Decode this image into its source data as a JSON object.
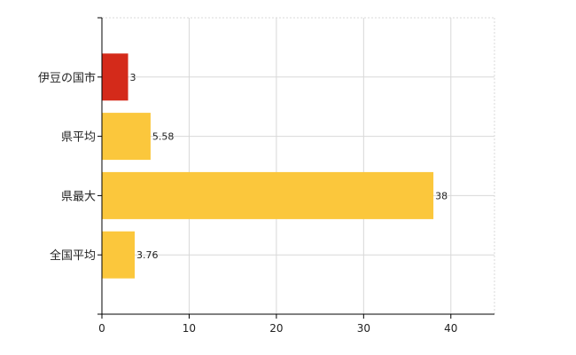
{
  "chart_data": {
    "type": "bar",
    "orientation": "horizontal",
    "categories": [
      "伊豆の国市",
      "県平均",
      "県最大",
      "全国平均"
    ],
    "values": [
      3,
      5.58,
      38,
      3.76
    ],
    "data_labels": [
      "3",
      "5.58",
      "38",
      "3.76"
    ],
    "xlim": [
      0,
      45
    ],
    "xticks": [
      0,
      10,
      20,
      30,
      40
    ],
    "xtick_labels": [
      "0",
      "10",
      "20",
      "30",
      "40"
    ],
    "grid": true,
    "bar_colors": [
      "#d42a1a",
      "#fbc73c",
      "#fbc73c",
      "#fbc73c"
    ]
  }
}
